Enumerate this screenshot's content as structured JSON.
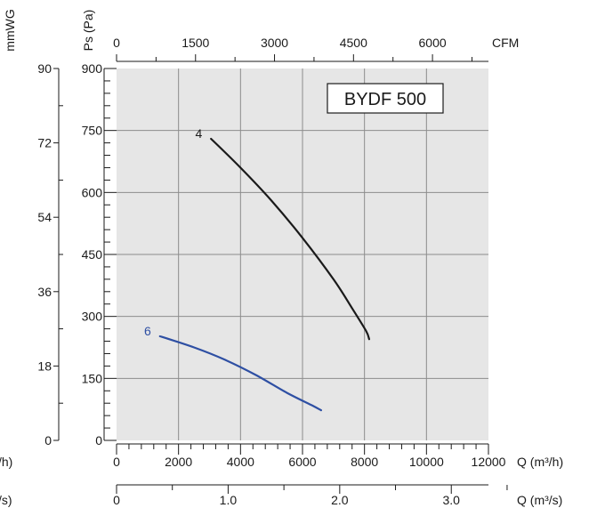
{
  "chart_data": {
    "type": "line",
    "title": "BYDF 500",
    "background_color": "#e6e6e6",
    "grid": true,
    "axes": {
      "ps": {
        "label": "Ps (Pa)",
        "ticks": [
          "0",
          "150",
          "300",
          "450",
          "600",
          "750",
          "900"
        ],
        "range": [
          0,
          900
        ]
      },
      "mmwg": {
        "label": "mmWG",
        "ticks": [
          "0",
          "18",
          "36",
          "54",
          "72",
          "90"
        ],
        "range": [
          0,
          90
        ]
      },
      "q_m3h": {
        "label": "Q (m³/h)",
        "ticks": [
          "0",
          "2000",
          "4000",
          "6000",
          "8000",
          "10000",
          "12000"
        ],
        "range": [
          0,
          12000
        ]
      },
      "cfm": {
        "label": "CFM",
        "ticks": [
          "0",
          "1500",
          "3000",
          "4500",
          "6000"
        ],
        "range": [
          0,
          7063
        ]
      },
      "q_m3s": {
        "label": "Q (m³/s)",
        "ticks": [
          "0",
          "1.0",
          "2.0",
          "3.0"
        ],
        "range": [
          0,
          3.333
        ]
      },
      "left_partial_labels": [
        "/h)",
        "/s)"
      ]
    },
    "series": [
      {
        "name": "4",
        "color": "#1a1a1a",
        "x": [
          3050,
          4000,
          5000,
          6000,
          7000,
          7600,
          8050,
          8150
        ],
        "y": [
          730,
          660,
          580,
          490,
          390,
          320,
          265,
          245
        ]
      },
      {
        "name": "6",
        "color": "#2e4fa3",
        "x": [
          1400,
          2500,
          3500,
          4500,
          5500,
          6300,
          6600
        ],
        "y": [
          252,
          225,
          195,
          158,
          115,
          85,
          73
        ]
      }
    ]
  }
}
